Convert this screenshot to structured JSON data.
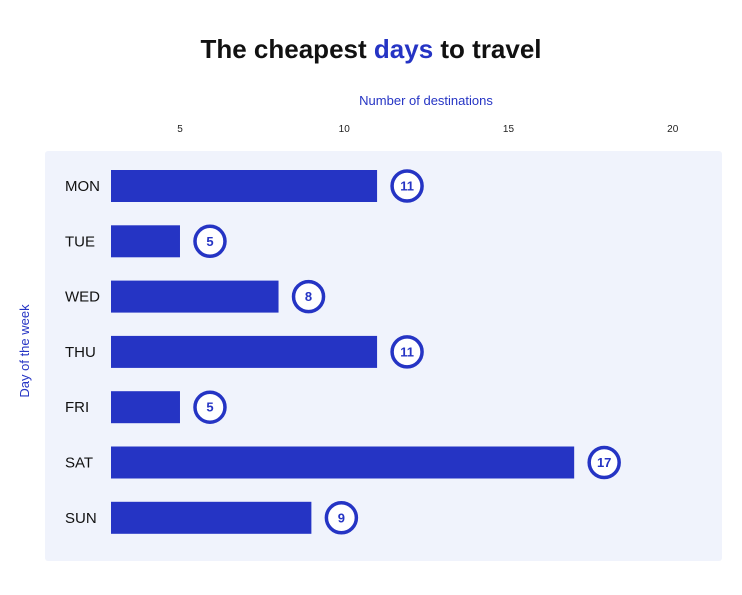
{
  "title": {
    "prefix": "The",
    "bold": "cheapest",
    "accent": "days",
    "suffix": "to travel"
  },
  "colors": {
    "bar": "#2534c4",
    "accent": "#2534c4",
    "panel": "#f0f3fc",
    "badge_fill": "#ffffff"
  },
  "chart_data": {
    "type": "bar",
    "orientation": "horizontal",
    "title": "The cheapest days to travel",
    "xlabel": "Number of destinations",
    "ylabel": "Day of the week",
    "categories": [
      "MON",
      "TUE",
      "WED",
      "THU",
      "FRI",
      "SAT",
      "SUN"
    ],
    "values": [
      11,
      5,
      8,
      11,
      5,
      17,
      9
    ],
    "xticks": [
      5,
      10,
      15,
      20
    ],
    "xlim": [
      2.9,
      21.5
    ],
    "grid": false,
    "legend": "none"
  }
}
